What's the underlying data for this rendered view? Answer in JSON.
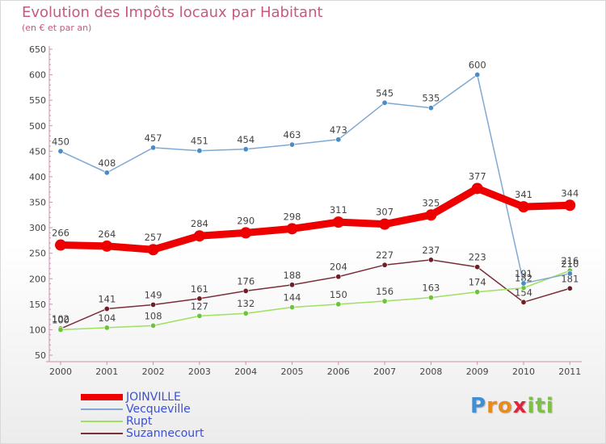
{
  "chart_data": {
    "type": "line",
    "title": "Evolution des Impôts locaux par Habitant",
    "subtitle": "(en € et par an)",
    "xlabel": "",
    "ylabel": "",
    "x": [
      "2000",
      "2001",
      "2002",
      "2003",
      "2004",
      "2005",
      "2006",
      "2007",
      "2008",
      "2009",
      "2010",
      "2011"
    ],
    "ylim": [
      50,
      650
    ],
    "yticks": [
      50,
      100,
      150,
      200,
      250,
      300,
      350,
      400,
      450,
      500,
      550,
      600,
      650
    ],
    "grid": false,
    "legend_position": "bottom-left",
    "series": [
      {
        "name": "JOINVILLE",
        "color": "#ee0000",
        "emphasis": true,
        "values": [
          266,
          264,
          257,
          284,
          290,
          298,
          311,
          307,
          325,
          377,
          341,
          344
        ]
      },
      {
        "name": "Vecqueville",
        "color": "#7fa9d2",
        "marker": "#4a8cc6",
        "values": [
          450,
          408,
          457,
          451,
          454,
          463,
          473,
          545,
          535,
          600,
          191,
          210
        ]
      },
      {
        "name": "Rupt",
        "color": "#9ee05f",
        "marker": "#6cc43a",
        "values": [
          100,
          104,
          108,
          127,
          132,
          144,
          150,
          156,
          163,
          174,
          182,
          216
        ]
      },
      {
        "name": "Suzannecourt",
        "color": "#7a2e3a",
        "marker": "#6e1f26",
        "values": [
          102,
          141,
          149,
          161,
          176,
          188,
          204,
          227,
          237,
          223,
          154,
          181
        ]
      }
    ]
  },
  "brand": {
    "letters": [
      "P",
      "r",
      "o",
      "x",
      "i",
      "t",
      "i"
    ],
    "colors": [
      "#3d8fd6",
      "#e98a1f",
      "#e98a1f",
      "#e0243b",
      "#7cc242",
      "#7cc242",
      "#7cc242"
    ]
  }
}
